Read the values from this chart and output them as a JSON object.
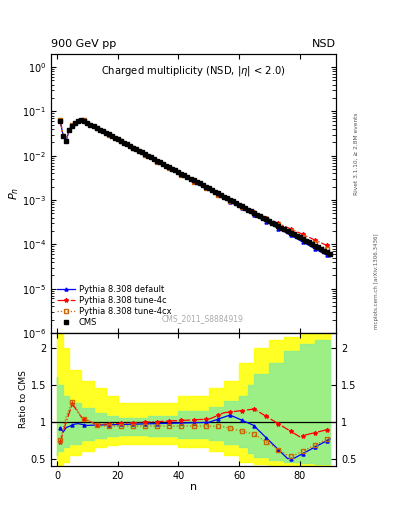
{
  "title_top_left": "900 GeV pp",
  "title_top_right": "NSD",
  "plot_title": "Charged multiplicity (NSD, |\\eta| < 2.0)",
  "xlabel": "n",
  "ylabel_main": "P_n",
  "ylabel_ratio": "Ratio to CMS",
  "right_label_top": "Rivet 3.1.10, ≥ 2.8M events",
  "right_label_bot": "mcplots.cern.ch [arXiv:1306.3436]",
  "watermark": "CMS_2011_S8884919",
  "legend_labels": [
    "CMS",
    "Pythia 8.308 default",
    "Pythia 8.308 tune-4c",
    "Pythia 8.308 tune-4cx"
  ],
  "ylim_main": [
    1e-06,
    2.0
  ],
  "ylim_ratio": [
    0.4,
    2.2
  ],
  "xlim": [
    -2,
    92
  ],
  "ratio_yticks": [
    0.5,
    1.0,
    1.5,
    2.0
  ]
}
